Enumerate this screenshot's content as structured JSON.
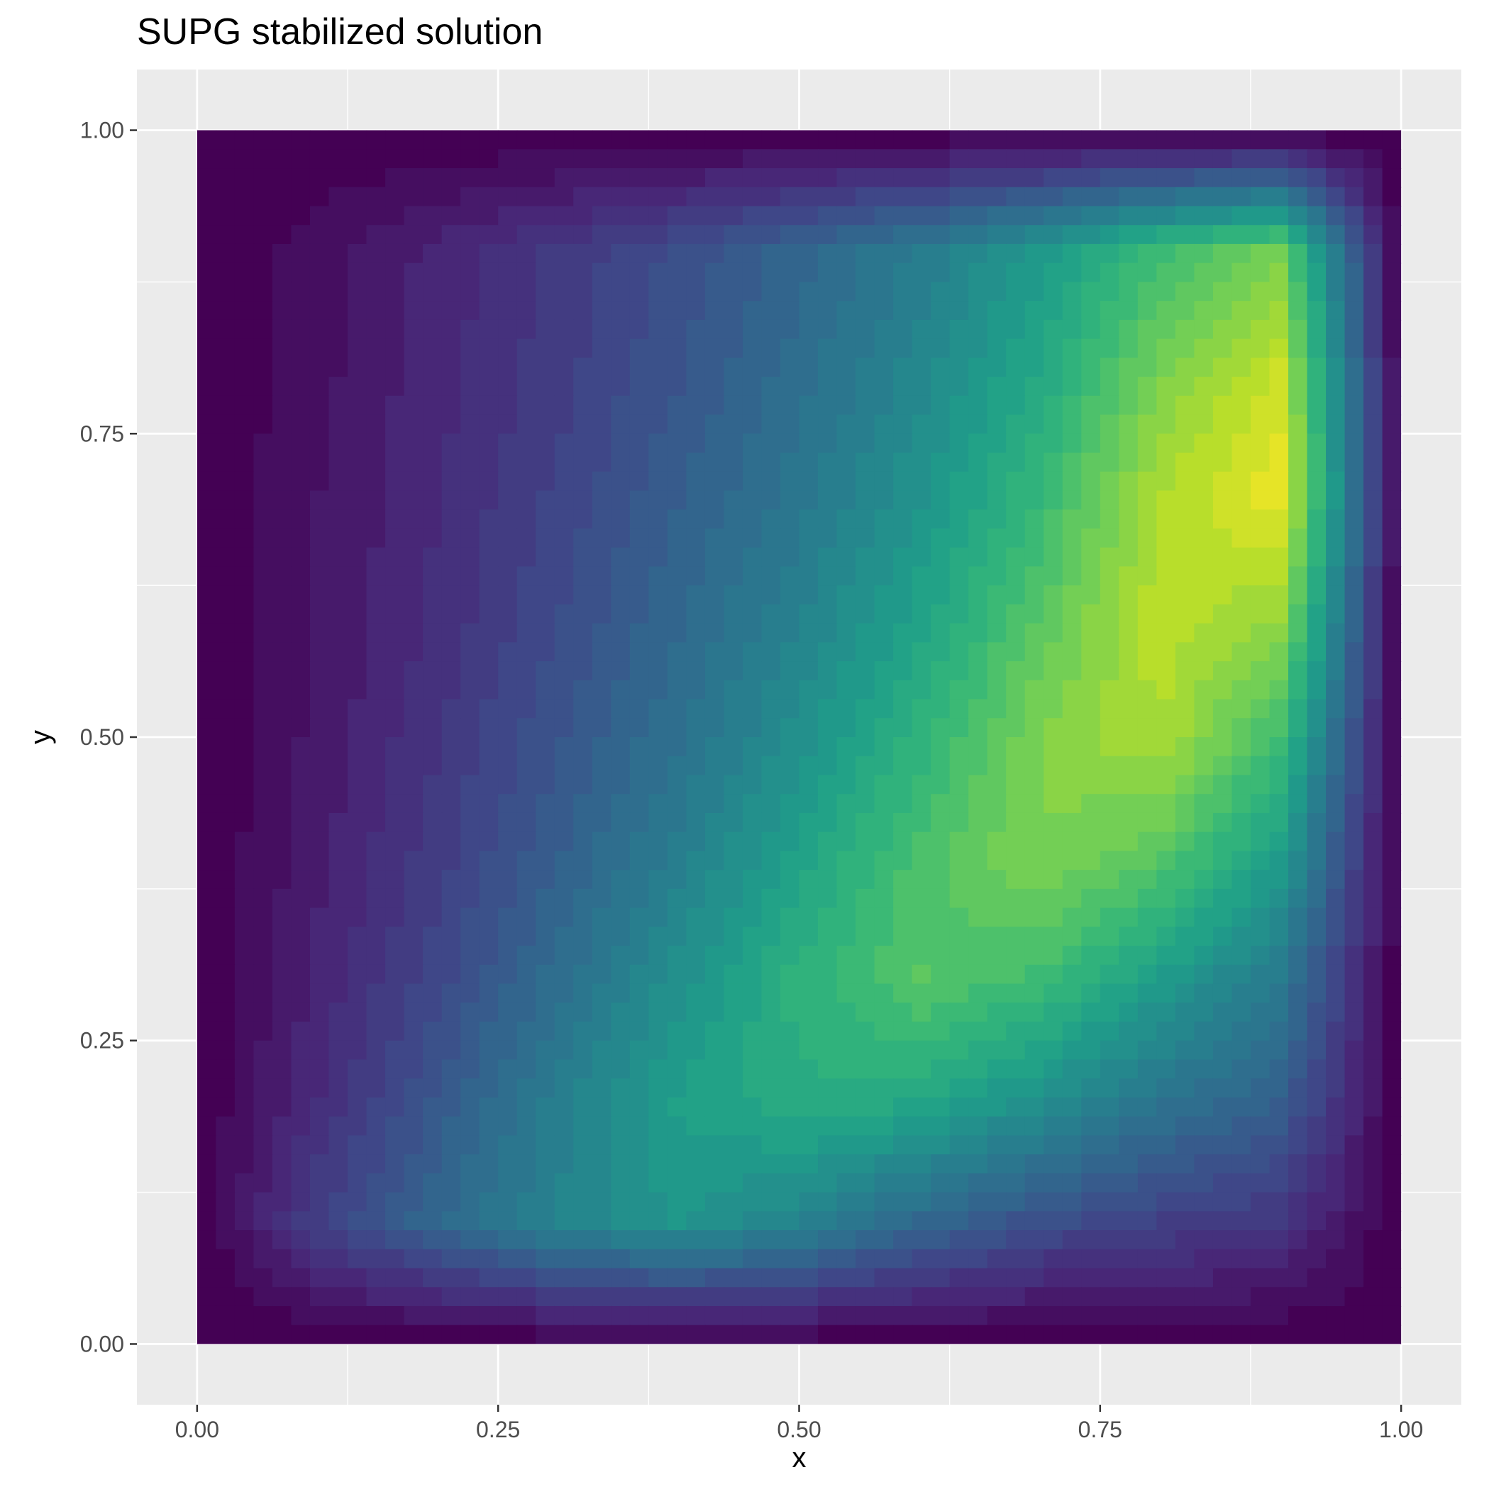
{
  "chart_data": {
    "type": "heatmap",
    "title": "SUPG stabilized solution",
    "xlabel": "x",
    "ylabel": "y",
    "xlim": [
      -0.05,
      1.05
    ],
    "ylim": [
      -0.05,
      1.05
    ],
    "x_ticks": [
      "0.00",
      "0.25",
      "0.50",
      "0.75",
      "1.00"
    ],
    "y_ticks": [
      "0.00",
      "0.25",
      "0.50",
      "0.75",
      "1.00"
    ],
    "x_tick_values": [
      0,
      0.25,
      0.5,
      0.75,
      1.0
    ],
    "y_tick_values": [
      0,
      0.25,
      0.5,
      0.75,
      1.0
    ],
    "grid": true,
    "legend": "none",
    "colormap": "viridis",
    "colors": {
      "panel_background": "#ebebeb",
      "grid_line": "#ffffff",
      "tick_mark": "#333333",
      "viridis": [
        "#440154",
        "#482878",
        "#3e4989",
        "#31688e",
        "#26828e",
        "#1f9e89",
        "#35b779",
        "#6ece58",
        "#b5de2b",
        "#fde725"
      ]
    },
    "field_peak": {
      "x": 0.88,
      "y": 0.76,
      "value": 0.85
    },
    "x_grid": [
      0.0,
      0.1,
      0.2,
      0.3,
      0.4,
      0.5,
      0.6,
      0.7,
      0.8,
      0.9,
      1.0
    ],
    "y_grid": [
      0.0,
      0.1,
      0.2,
      0.3,
      0.4,
      0.5,
      0.6,
      0.7,
      0.8,
      0.9,
      1.0
    ],
    "z": [
      [
        0.0,
        0.0,
        0.0,
        0.0,
        0.0,
        0.0,
        0.0,
        0.0,
        0.0,
        0.0,
        0.0
      ],
      [
        0.0,
        0.18,
        0.3,
        0.4,
        0.46,
        0.4,
        0.3,
        0.22,
        0.18,
        0.15,
        0.0
      ],
      [
        0.0,
        0.12,
        0.25,
        0.38,
        0.49,
        0.54,
        0.52,
        0.44,
        0.34,
        0.27,
        0.0
      ],
      [
        0.0,
        0.1,
        0.2,
        0.32,
        0.44,
        0.56,
        0.64,
        0.6,
        0.48,
        0.36,
        0.0
      ],
      [
        0.0,
        0.08,
        0.17,
        0.27,
        0.38,
        0.5,
        0.62,
        0.7,
        0.64,
        0.48,
        0.0
      ],
      [
        0.0,
        0.07,
        0.15,
        0.24,
        0.33,
        0.44,
        0.56,
        0.7,
        0.76,
        0.6,
        0.0
      ],
      [
        0.0,
        0.06,
        0.13,
        0.21,
        0.3,
        0.39,
        0.5,
        0.64,
        0.78,
        0.73,
        0.0
      ],
      [
        0.0,
        0.06,
        0.12,
        0.19,
        0.27,
        0.35,
        0.45,
        0.58,
        0.76,
        0.84,
        0.0
      ],
      [
        0.0,
        0.05,
        0.11,
        0.17,
        0.24,
        0.32,
        0.41,
        0.52,
        0.69,
        0.8,
        0.0
      ],
      [
        0.0,
        0.05,
        0.1,
        0.16,
        0.22,
        0.29,
        0.37,
        0.47,
        0.6,
        0.68,
        0.0
      ],
      [
        0.0,
        0.0,
        0.0,
        0.0,
        0.0,
        0.0,
        0.0,
        0.0,
        0.0,
        0.0,
        0.0
      ]
    ]
  }
}
